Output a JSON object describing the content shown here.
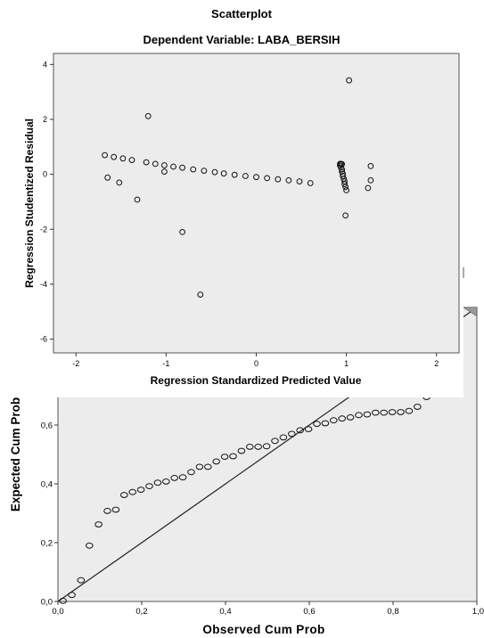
{
  "chart_data": [
    {
      "type": "scatter",
      "title": "Scatterplot",
      "subtitle": "Dependent Variable: LABA_BERSIH",
      "xlabel": "Regression Standardized Predicted Value",
      "ylabel": "Regression Studentized Residual",
      "xlim": [
        -2.25,
        2.25
      ],
      "ylim": [
        -6.5,
        4.4
      ],
      "xticks": [
        "-2",
        "-1",
        "0",
        "1",
        "2"
      ],
      "xtick_values": [
        -2,
        -1,
        0,
        1,
        2
      ],
      "yticks": [
        "-6",
        "-4",
        "-2",
        "0",
        "2",
        "4"
      ],
      "ytick_values": [
        -6,
        -4,
        -2,
        0,
        2,
        4
      ],
      "grid": false,
      "marker": "open-circle",
      "points": [
        [
          -1.68,
          0.7
        ],
        [
          -1.58,
          0.63
        ],
        [
          -1.48,
          0.58
        ],
        [
          -1.38,
          0.52
        ],
        [
          -1.22,
          0.44
        ],
        [
          -1.12,
          0.38
        ],
        [
          -1.02,
          0.33
        ],
        [
          -0.92,
          0.28
        ],
        [
          -0.82,
          0.24
        ],
        [
          -0.7,
          0.18
        ],
        [
          -0.58,
          0.13
        ],
        [
          -0.46,
          0.08
        ],
        [
          -0.36,
          0.03
        ],
        [
          -0.24,
          -0.02
        ],
        [
          -0.12,
          -0.06
        ],
        [
          0.0,
          -0.1
        ],
        [
          0.12,
          -0.14
        ],
        [
          0.24,
          -0.18
        ],
        [
          0.36,
          -0.22
        ],
        [
          0.48,
          -0.26
        ],
        [
          0.6,
          -0.32
        ],
        [
          -1.65,
          -0.12
        ],
        [
          -1.52,
          -0.3
        ],
        [
          -1.32,
          -0.92
        ],
        [
          -1.02,
          0.1
        ],
        [
          -1.2,
          2.12
        ],
        [
          -0.82,
          -2.1
        ],
        [
          -0.62,
          -4.38
        ],
        [
          1.03,
          3.42
        ],
        [
          1.27,
          0.3
        ],
        [
          1.27,
          -0.22
        ],
        [
          1.24,
          -0.5
        ],
        [
          0.99,
          -1.5
        ],
        [
          0.93,
          0.38
        ],
        [
          0.94,
          0.38
        ],
        [
          0.95,
          0.37
        ],
        [
          0.93,
          0.32
        ],
        [
          0.94,
          0.25
        ],
        [
          0.95,
          0.18
        ],
        [
          0.95,
          0.1
        ],
        [
          0.96,
          0.02
        ],
        [
          0.96,
          -0.06
        ],
        [
          0.97,
          -0.16
        ],
        [
          0.98,
          -0.26
        ],
        [
          0.98,
          -0.36
        ],
        [
          0.99,
          -0.46
        ],
        [
          1.0,
          -0.58
        ]
      ]
    },
    {
      "type": "scatter",
      "title": "",
      "xlabel": "Observed Cum Prob",
      "ylabel": "Expected Cum Prob",
      "xlim": [
        0.0,
        1.0
      ],
      "ylim": [
        0.0,
        1.0
      ],
      "xticks": [
        "0,0",
        "0,2",
        "0,4",
        "0,6",
        "0,8",
        "1,0"
      ],
      "xtick_values": [
        0.0,
        0.2,
        0.4,
        0.6,
        0.8,
        1.0
      ],
      "yticks": [
        "0,0",
        "0,2",
        "0,4",
        "0,6"
      ],
      "ytick_values": [
        0.0,
        0.2,
        0.4,
        0.6
      ],
      "grid": false,
      "reference_line": [
        [
          0,
          0
        ],
        [
          1,
          1
        ]
      ],
      "marker": "open-circle",
      "points": [
        [
          0.012,
          0.002
        ],
        [
          0.033,
          0.022
        ],
        [
          0.055,
          0.072
        ],
        [
          0.075,
          0.19
        ],
        [
          0.097,
          0.262
        ],
        [
          0.118,
          0.308
        ],
        [
          0.138,
          0.312
        ],
        [
          0.158,
          0.362
        ],
        [
          0.178,
          0.372
        ],
        [
          0.198,
          0.38
        ],
        [
          0.218,
          0.392
        ],
        [
          0.238,
          0.404
        ],
        [
          0.258,
          0.408
        ],
        [
          0.278,
          0.42
        ],
        [
          0.298,
          0.422
        ],
        [
          0.318,
          0.44
        ],
        [
          0.338,
          0.458
        ],
        [
          0.358,
          0.458
        ],
        [
          0.378,
          0.476
        ],
        [
          0.398,
          0.492
        ],
        [
          0.418,
          0.494
        ],
        [
          0.438,
          0.512
        ],
        [
          0.458,
          0.526
        ],
        [
          0.478,
          0.526
        ],
        [
          0.498,
          0.528
        ],
        [
          0.518,
          0.546
        ],
        [
          0.538,
          0.558
        ],
        [
          0.558,
          0.57
        ],
        [
          0.578,
          0.582
        ],
        [
          0.598,
          0.586
        ],
        [
          0.618,
          0.604
        ],
        [
          0.638,
          0.606
        ],
        [
          0.658,
          0.616
        ],
        [
          0.678,
          0.622
        ],
        [
          0.698,
          0.626
        ],
        [
          0.718,
          0.634
        ],
        [
          0.738,
          0.636
        ],
        [
          0.758,
          0.642
        ],
        [
          0.778,
          0.642
        ],
        [
          0.798,
          0.644
        ],
        [
          0.818,
          0.644
        ],
        [
          0.838,
          0.648
        ],
        [
          0.858,
          0.662
        ],
        [
          0.88,
          0.695
        ]
      ]
    }
  ]
}
